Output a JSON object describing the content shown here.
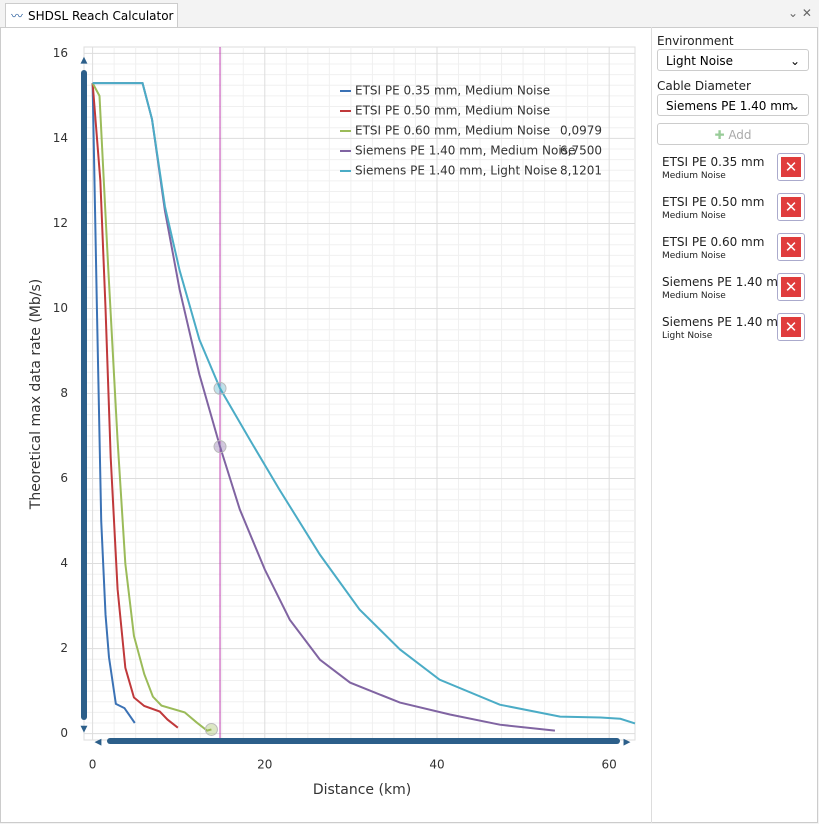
{
  "window": {
    "tab_title": "SHDSL Reach Calculator"
  },
  "sidebar": {
    "environment_label": "Environment",
    "environment_value": "Light Noise",
    "cable_label": "Cable Diameter",
    "cable_value": "Siemens PE 1.40 mm",
    "add_button": "Add",
    "items": [
      {
        "name": "ETSI PE 0.35 mm",
        "noise": "Medium Noise"
      },
      {
        "name": "ETSI PE 0.50 mm",
        "noise": "Medium Noise"
      },
      {
        "name": "ETSI PE 0.60 mm",
        "noise": "Medium Noise"
      },
      {
        "name": "Siemens PE 1.40 mm",
        "noise": "Medium Noise"
      },
      {
        "name": "Siemens PE 1.40 mm",
        "noise": "Light Noise"
      }
    ]
  },
  "chart_data": {
    "type": "line",
    "x_label": "Distance (km)",
    "y_label": "Theoretical max data rate (Mb/s)",
    "xlim": [
      -1,
      63
    ],
    "ylim": [
      -0.15,
      16.15
    ],
    "xticks": [
      0,
      20,
      40,
      60
    ],
    "yticks": [
      0,
      2,
      4,
      6,
      8,
      10,
      12,
      14,
      16
    ],
    "grid": true,
    "cursor_x": 14.8,
    "series": [
      {
        "name": "ETSI PE 0.35 mm, Medium Noise",
        "color": "#3b72b5",
        "x": [
          0,
          0.5,
          1,
          1.5,
          1.9,
          2.7,
          3.7,
          4.9
        ],
        "values": [
          15.3,
          10,
          5,
          2.8,
          1.8,
          0.7,
          0.6,
          0.25
        ]
      },
      {
        "name": "ETSI PE 0.50 mm, Medium Noise",
        "color": "#c0393b",
        "x": [
          0,
          0.9,
          1.5,
          2.1,
          2.9,
          3.8,
          4.8,
          6,
          7.8,
          8.7,
          9.9
        ],
        "values": [
          15.3,
          13,
          10,
          6.5,
          3.4,
          1.55,
          0.85,
          0.65,
          0.52,
          0.33,
          0.14
        ]
      },
      {
        "name": "ETSI PE 0.60 mm, Medium Noise",
        "color": "#9bbb59",
        "x": [
          0,
          0.8,
          1.8,
          2.9,
          3.8,
          4.8,
          6,
          7,
          8,
          10.7,
          12.1,
          13.3,
          13.8
        ],
        "values": [
          15.3,
          15,
          11,
          6.9,
          4,
          2.3,
          1.4,
          0.87,
          0.66,
          0.5,
          0.26,
          0.07,
          0.0979
        ],
        "cursor": {
          "x": 13.8,
          "value": 0.0979,
          "label": "0,0979"
        }
      },
      {
        "name": "Siemens PE 1.40 mm, Medium Noise",
        "color": "#8064a2",
        "x": [
          0,
          5.8,
          6.9,
          8.4,
          10.1,
          12.4,
          14.8,
          17.1,
          20,
          22.9,
          26.4,
          29.9,
          35.7,
          41.5,
          47.3,
          53.7
        ],
        "values": [
          15.3,
          15.3,
          14.45,
          12.3,
          10.45,
          8.45,
          6.75,
          5.27,
          3.86,
          2.68,
          1.74,
          1.2,
          0.73,
          0.45,
          0.21,
          0.07
        ],
        "cursor": {
          "x": 14.8,
          "value": 6.75,
          "label": "6,7500"
        }
      },
      {
        "name": "Siemens PE 1.40 mm, Light Noise",
        "color": "#4bacc6",
        "x": [
          0,
          5.8,
          6.9,
          8.4,
          10.1,
          12.4,
          14.8,
          18.3,
          21.7,
          26.4,
          31,
          35.7,
          40.3,
          47.3,
          54.3,
          59,
          61.3,
          63
        ],
        "values": [
          15.3,
          15.3,
          14.45,
          12.4,
          10.9,
          9.27,
          8.1201,
          6.9,
          5.74,
          4.21,
          2.92,
          1.98,
          1.27,
          0.68,
          0.4,
          0.38,
          0.35,
          0.24
        ],
        "cursor": {
          "x": 14.8,
          "value": 8.1201,
          "label": "8,1201"
        }
      }
    ]
  }
}
